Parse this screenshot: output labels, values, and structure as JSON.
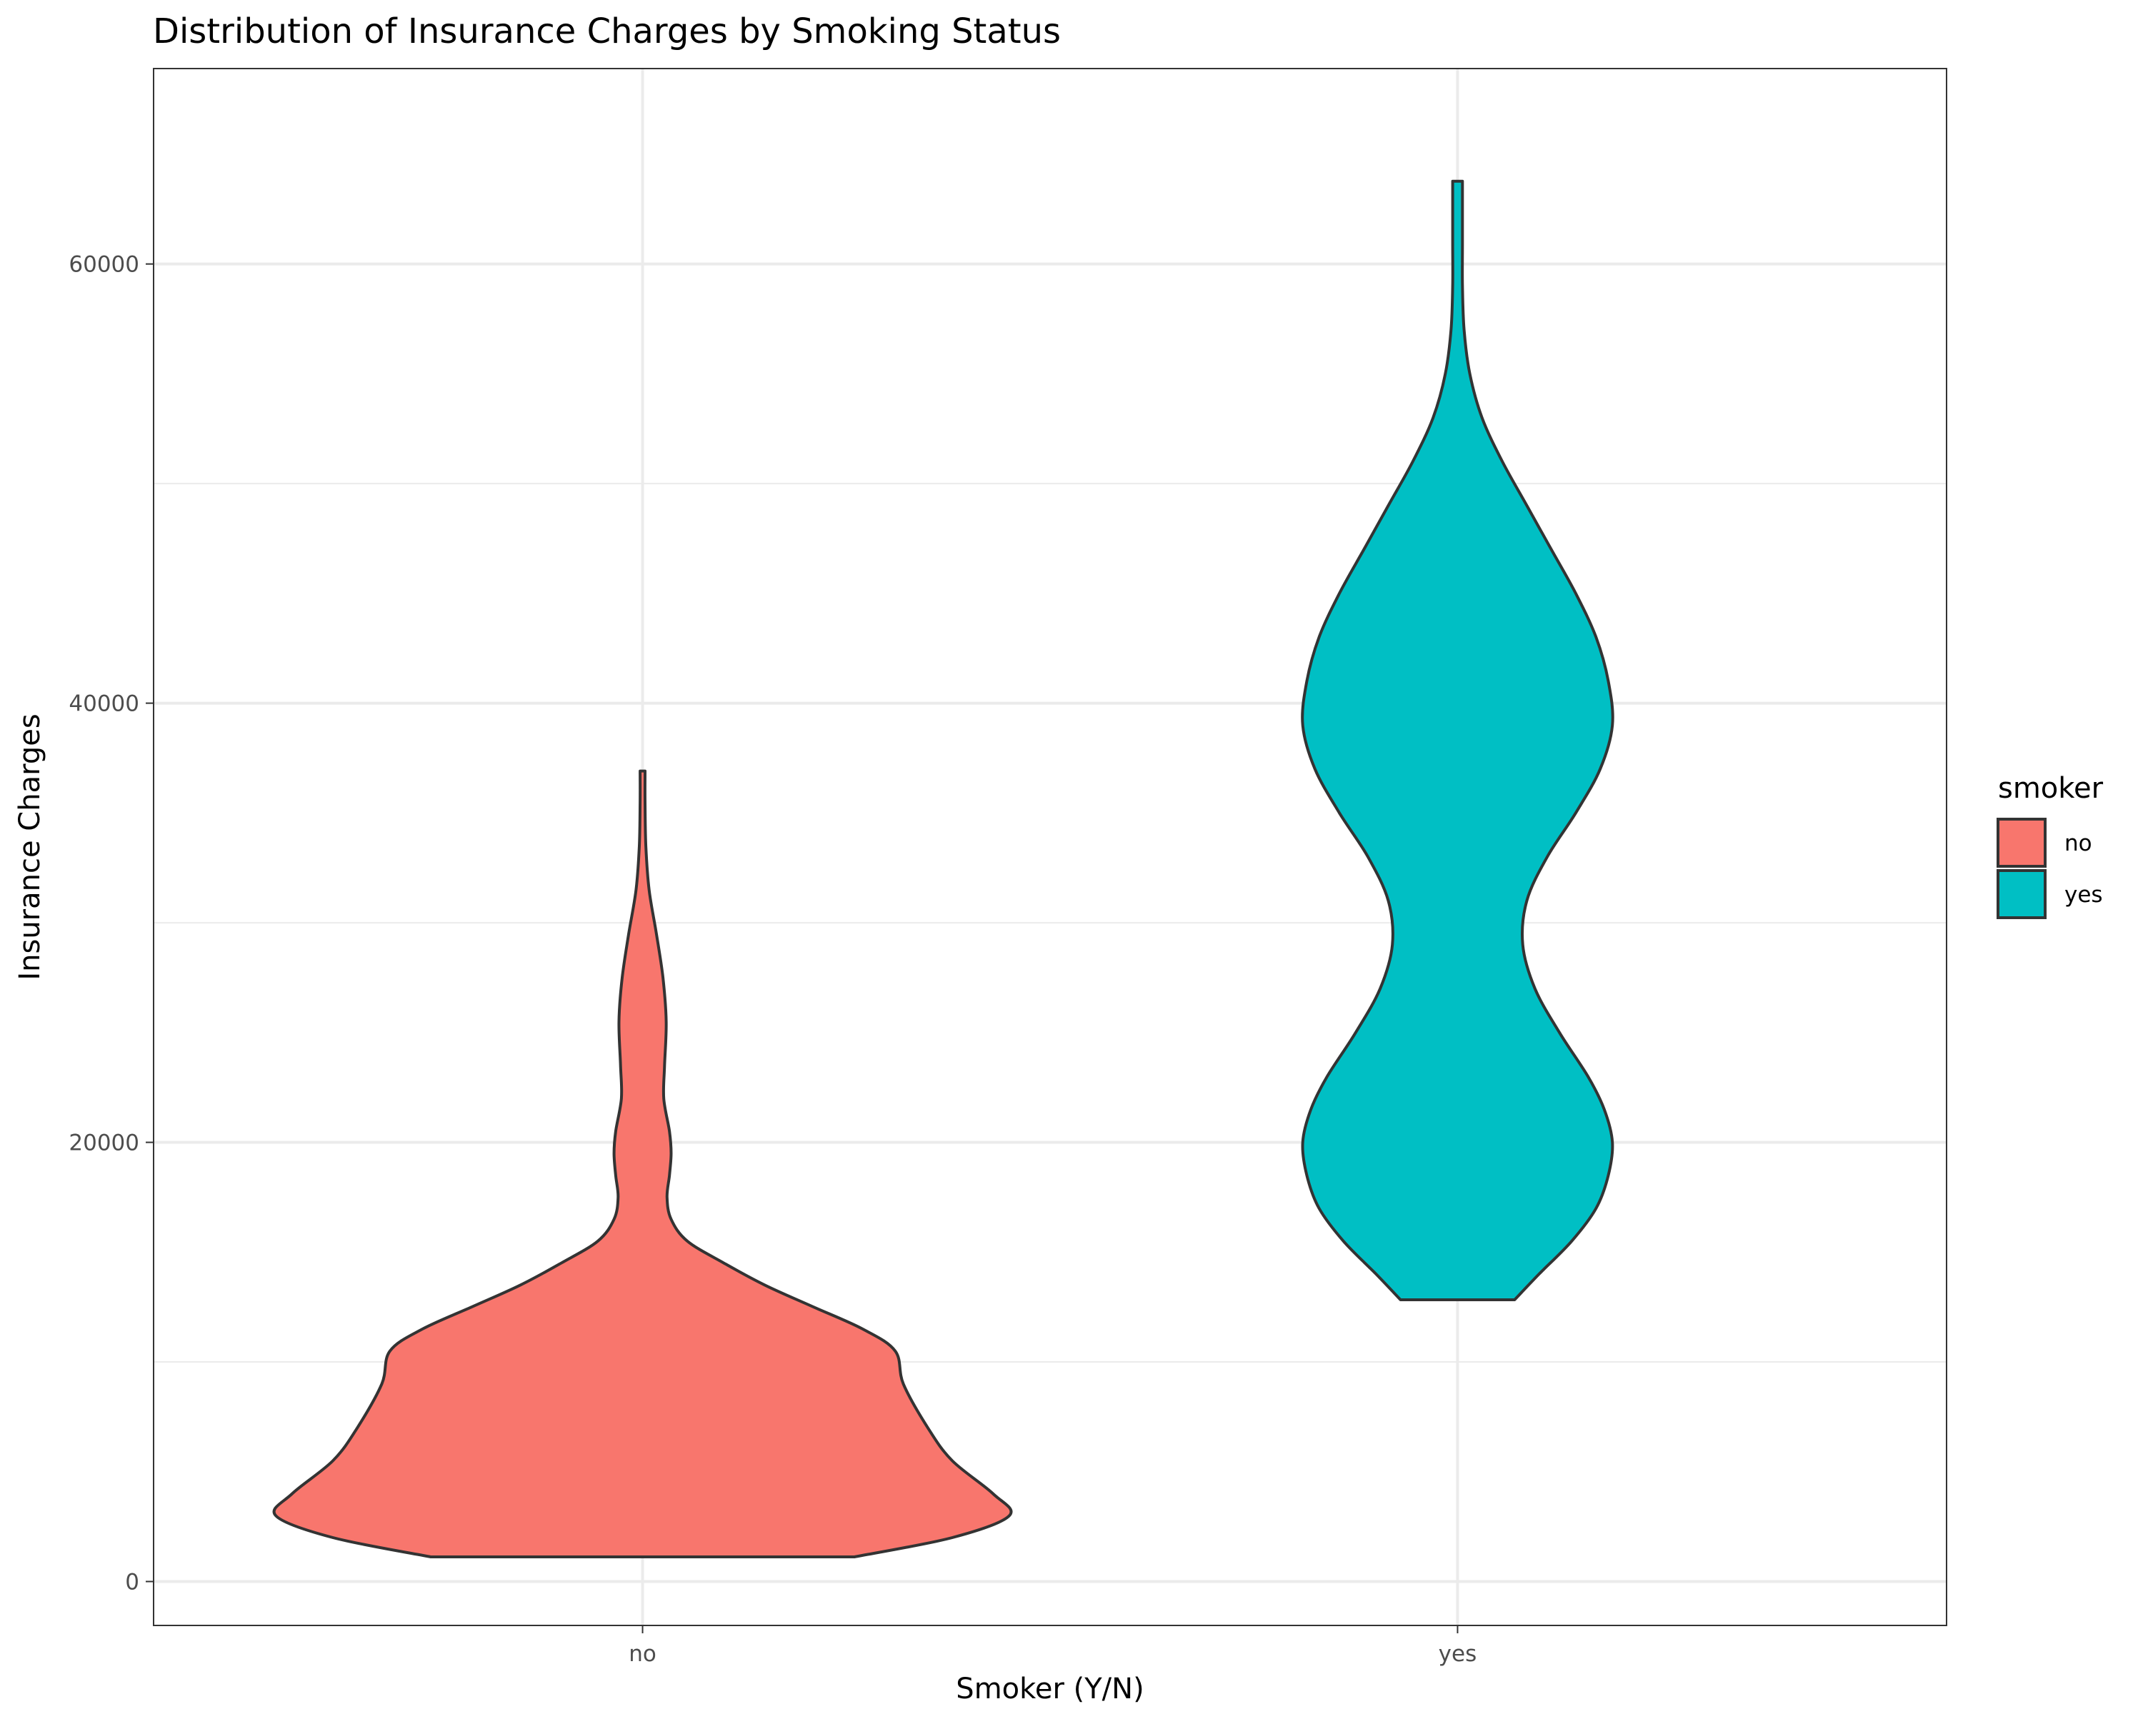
{
  "chart_data": {
    "type": "violin",
    "title": "Distribution of Insurance Charges by Smoking Status",
    "xlabel": "Smoker (Y/N)",
    "ylabel": "Insurance Charges",
    "categories": [
      "no",
      "yes"
    ],
    "yticks": [
      0,
      20000,
      40000,
      60000
    ],
    "ylim": [
      -2000,
      68900
    ],
    "grid": true,
    "legend": {
      "title": "smoker",
      "placement": "right",
      "entries": [
        {
          "label": "no",
          "color": "#F8766D"
        },
        {
          "label": "yes",
          "color": "#00BFC4"
        }
      ]
    },
    "series": [
      {
        "category": "no",
        "color": "#F8766D",
        "min": 1122,
        "max": 36911,
        "density_profile": [
          {
            "y": 1122,
            "half_width": 0.26
          },
          {
            "y": 2000,
            "half_width": 0.38
          },
          {
            "y": 3000,
            "half_width": 0.45
          },
          {
            "y": 4000,
            "half_width": 0.43
          },
          {
            "y": 5500,
            "half_width": 0.38
          },
          {
            "y": 7000,
            "half_width": 0.35
          },
          {
            "y": 9000,
            "half_width": 0.32
          },
          {
            "y": 10500,
            "half_width": 0.31
          },
          {
            "y": 11500,
            "half_width": 0.27
          },
          {
            "y": 12500,
            "half_width": 0.21
          },
          {
            "y": 13500,
            "half_width": 0.15
          },
          {
            "y": 14500,
            "half_width": 0.1
          },
          {
            "y": 15500,
            "half_width": 0.055
          },
          {
            "y": 16500,
            "half_width": 0.035
          },
          {
            "y": 17500,
            "half_width": 0.03
          },
          {
            "y": 18500,
            "half_width": 0.033
          },
          {
            "y": 19500,
            "half_width": 0.035
          },
          {
            "y": 20500,
            "half_width": 0.033
          },
          {
            "y": 22000,
            "half_width": 0.026
          },
          {
            "y": 23500,
            "half_width": 0.027
          },
          {
            "y": 25500,
            "half_width": 0.029
          },
          {
            "y": 27500,
            "half_width": 0.025
          },
          {
            "y": 29500,
            "half_width": 0.017
          },
          {
            "y": 31500,
            "half_width": 0.008
          },
          {
            "y": 33500,
            "half_width": 0.004
          },
          {
            "y": 35500,
            "half_width": 0.003
          },
          {
            "y": 36911,
            "half_width": 0.003
          }
        ]
      },
      {
        "category": "yes",
        "color": "#00BFC4",
        "min": 12829,
        "max": 63770,
        "density_profile": [
          {
            "y": 12829,
            "half_width": 0.07
          },
          {
            "y": 14000,
            "half_width": 0.1
          },
          {
            "y": 15500,
            "half_width": 0.14
          },
          {
            "y": 17000,
            "half_width": 0.17
          },
          {
            "y": 18500,
            "half_width": 0.185
          },
          {
            "y": 20000,
            "half_width": 0.19
          },
          {
            "y": 21500,
            "half_width": 0.18
          },
          {
            "y": 23000,
            "half_width": 0.16
          },
          {
            "y": 25000,
            "half_width": 0.125
          },
          {
            "y": 27000,
            "half_width": 0.095
          },
          {
            "y": 29000,
            "half_width": 0.08
          },
          {
            "y": 31000,
            "half_width": 0.085
          },
          {
            "y": 33000,
            "half_width": 0.11
          },
          {
            "y": 35000,
            "half_width": 0.145
          },
          {
            "y": 37000,
            "half_width": 0.175
          },
          {
            "y": 39000,
            "half_width": 0.19
          },
          {
            "y": 41000,
            "half_width": 0.185
          },
          {
            "y": 43000,
            "half_width": 0.17
          },
          {
            "y": 45000,
            "half_width": 0.145
          },
          {
            "y": 47000,
            "half_width": 0.115
          },
          {
            "y": 49000,
            "half_width": 0.085
          },
          {
            "y": 51000,
            "half_width": 0.055
          },
          {
            "y": 53000,
            "half_width": 0.03
          },
          {
            "y": 55000,
            "half_width": 0.015
          },
          {
            "y": 57000,
            "half_width": 0.008
          },
          {
            "y": 59000,
            "half_width": 0.006
          },
          {
            "y": 61000,
            "half_width": 0.006
          },
          {
            "y": 63770,
            "half_width": 0.006
          }
        ]
      }
    ]
  }
}
